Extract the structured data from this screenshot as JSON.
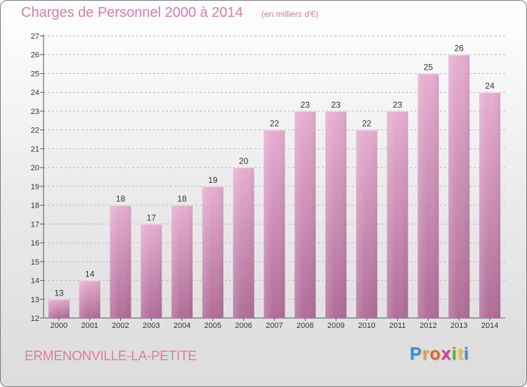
{
  "header": {
    "title": "Charges de Personnel 2000 à 2014",
    "subtitle": "(en milliers d'€)"
  },
  "footer": {
    "commune": "ERMENONVILLE-LA-PETITE",
    "logo_text": "Proxiti",
    "logo_colors": [
      "#3a8fd6",
      "#e8a23a",
      "#e86a2a",
      "#d63a8f",
      "#5bb030",
      "#e8c23a",
      "#3a8fd6"
    ]
  },
  "colors": {
    "bar_top": "#e6aed0",
    "bar_bottom": "#b06d98",
    "title": "#e07aa7",
    "grid": "#b8b8b8"
  },
  "chart_data": {
    "type": "bar",
    "categories": [
      "2000",
      "2001",
      "2002",
      "2003",
      "2004",
      "2005",
      "2006",
      "2007",
      "2008",
      "2009",
      "2010",
      "2011",
      "2012",
      "2013",
      "2014"
    ],
    "values": [
      13,
      14,
      18,
      17,
      18,
      19,
      20,
      22,
      23,
      23,
      22,
      23,
      25,
      26,
      24
    ],
    "ylim": [
      12,
      27
    ],
    "yticks": [
      12,
      13,
      14,
      15,
      16,
      17,
      18,
      19,
      20,
      21,
      22,
      23,
      24,
      25,
      26,
      27
    ],
    "grid": true,
    "data_labels": true
  }
}
